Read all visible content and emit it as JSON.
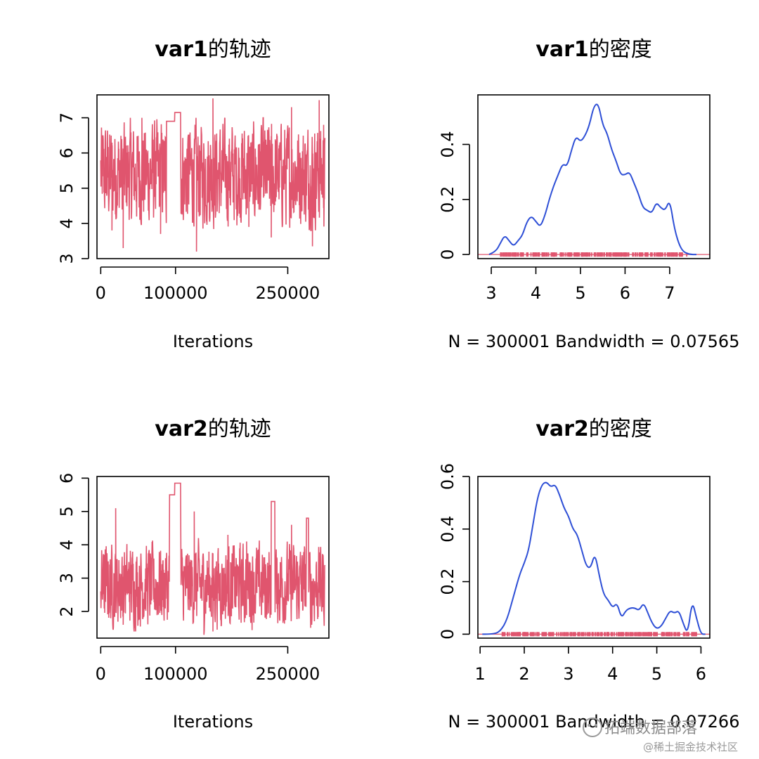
{
  "chart_data": [
    {
      "type": "line",
      "title_bold": "var1",
      "title_rest": "的轨迹",
      "xlabel": "Iterations",
      "xticks": [
        0,
        100000,
        250000
      ],
      "yticks": [
        3,
        4,
        5,
        6,
        7
      ],
      "xlim": [
        -5000,
        305000
      ],
      "ylim": [
        3.0,
        7.65
      ],
      "series": [
        {
          "color": "#E0556E",
          "band": [
            4.2,
            6.6
          ],
          "mean": 5.4,
          "plateaus": [
            {
              "x0": 88000,
              "x1": 99000,
              "y": 6.9
            },
            {
              "x0": 99000,
              "x1": 107000,
              "y": 7.15
            }
          ],
          "gaps": [
            [
              92000,
              107000
            ]
          ],
          "spikes": [
            [
              2000,
              6.5
            ],
            [
              15000,
              3.8
            ],
            [
              30000,
              3.3
            ],
            [
              55000,
              7.0
            ],
            [
              80000,
              3.7
            ],
            [
              128000,
              3.2
            ],
            [
              150000,
              7.55
            ],
            [
              198000,
              3.9
            ],
            [
              228000,
              3.6
            ],
            [
              255000,
              7.3
            ],
            [
              283000,
              3.35
            ],
            [
              292000,
              7.5
            ],
            [
              298000,
              6.8
            ]
          ]
        }
      ],
      "points": 300001
    },
    {
      "type": "area",
      "title_bold": "var1",
      "title_rest": "的密度",
      "xlabel": "N = 300001   Bandwidth = 0.07565",
      "xticks": [
        3,
        4,
        5,
        6,
        7
      ],
      "yticks": [
        0.0,
        0.2,
        0.4
      ],
      "xlim": [
        2.7,
        7.9
      ],
      "ylim": [
        -0.015,
        0.58
      ],
      "series": [
        {
          "color": "#2E4FD6",
          "x": [
            2.95,
            3.1,
            3.2,
            3.3,
            3.4,
            3.5,
            3.6,
            3.7,
            3.8,
            3.9,
            4.0,
            4.1,
            4.2,
            4.3,
            4.4,
            4.5,
            4.6,
            4.7,
            4.8,
            4.9,
            5.0,
            5.1,
            5.2,
            5.3,
            5.4,
            5.5,
            5.6,
            5.7,
            5.8,
            5.9,
            6.0,
            6.1,
            6.2,
            6.3,
            6.4,
            6.5,
            6.6,
            6.7,
            6.8,
            6.9,
            7.0,
            7.1,
            7.2,
            7.3,
            7.45,
            7.6
          ],
          "y": [
            0.0,
            0.01,
            0.04,
            0.07,
            0.05,
            0.03,
            0.05,
            0.07,
            0.12,
            0.14,
            0.12,
            0.1,
            0.14,
            0.2,
            0.25,
            0.29,
            0.33,
            0.32,
            0.38,
            0.43,
            0.41,
            0.43,
            0.47,
            0.54,
            0.55,
            0.47,
            0.44,
            0.38,
            0.34,
            0.29,
            0.29,
            0.3,
            0.26,
            0.22,
            0.17,
            0.16,
            0.15,
            0.19,
            0.17,
            0.16,
            0.2,
            0.1,
            0.04,
            0.01,
            0.0,
            0.0
          ]
        }
      ],
      "rug": {
        "color": "#E0556E",
        "from": 3.2,
        "to": 7.4
      }
    },
    {
      "type": "line",
      "title_bold": "var2",
      "title_rest": "的轨迹",
      "xlabel": "Iterations",
      "xticks": [
        0,
        100000,
        250000
      ],
      "yticks": [
        2,
        3,
        4,
        5,
        6
      ],
      "xlim": [
        -5000,
        305000
      ],
      "ylim": [
        1.2,
        6.05
      ],
      "series": [
        {
          "color": "#E0556E",
          "band": [
            1.8,
            3.8
          ],
          "mean": 2.8,
          "plateaus": [
            {
              "x0": 92000,
              "x1": 99000,
              "y": 5.5
            },
            {
              "x0": 99000,
              "x1": 107000,
              "y": 5.85
            },
            {
              "x0": 228000,
              "x1": 233000,
              "y": 5.3
            },
            {
              "x0": 275000,
              "x1": 278000,
              "y": 4.8
            }
          ],
          "gaps": [
            [
              95000,
              107000
            ]
          ],
          "spikes": [
            [
              5000,
              3.7
            ],
            [
              20000,
              5.1
            ],
            [
              30000,
              1.6
            ],
            [
              45000,
              1.5
            ],
            [
              125000,
              5.0
            ],
            [
              138000,
              1.3
            ],
            [
              150000,
              1.4
            ],
            [
              170000,
              4.3
            ],
            [
              195000,
              4.1
            ],
            [
              255000,
              4.6
            ],
            [
              282000,
              1.6
            ],
            [
              297000,
              3.7
            ]
          ]
        }
      ],
      "points": 300001
    },
    {
      "type": "area",
      "title_bold": "var2",
      "title_rest": "的密度",
      "xlabel": "N = 300001   Bandwidth = 0.07266",
      "xticks": [
        1,
        2,
        3,
        4,
        5,
        6
      ],
      "yticks": [
        0.0,
        0.2,
        0.4,
        0.6
      ],
      "xlim": [
        0.95,
        6.2
      ],
      "ylim": [
        -0.015,
        0.6
      ],
      "series": [
        {
          "color": "#2E4FD6",
          "x": [
            1.05,
            1.3,
            1.45,
            1.6,
            1.75,
            1.9,
            2.0,
            2.1,
            2.2,
            2.3,
            2.4,
            2.5,
            2.6,
            2.7,
            2.8,
            2.9,
            3.0,
            3.1,
            3.2,
            3.3,
            3.4,
            3.5,
            3.6,
            3.7,
            3.8,
            3.9,
            4.0,
            4.1,
            4.2,
            4.3,
            4.4,
            4.5,
            4.6,
            4.7,
            4.8,
            4.9,
            5.0,
            5.1,
            5.2,
            5.3,
            5.4,
            5.5,
            5.6,
            5.7,
            5.8,
            5.9,
            6.0,
            6.1
          ],
          "y": [
            0.0,
            0.0,
            0.01,
            0.05,
            0.14,
            0.23,
            0.27,
            0.32,
            0.42,
            0.52,
            0.57,
            0.58,
            0.56,
            0.57,
            0.53,
            0.48,
            0.45,
            0.4,
            0.38,
            0.32,
            0.26,
            0.25,
            0.31,
            0.22,
            0.15,
            0.13,
            0.1,
            0.12,
            0.06,
            0.09,
            0.1,
            0.1,
            0.09,
            0.12,
            0.08,
            0.04,
            0.02,
            0.03,
            0.06,
            0.09,
            0.08,
            0.09,
            0.04,
            0.0,
            0.13,
            0.06,
            0.0,
            0.0
          ]
        }
      ],
      "rug": {
        "color": "#E0556E",
        "from": 1.5,
        "to": 5.9
      }
    }
  ],
  "watermark": {
    "line1": "拓端数据部落",
    "line2": "@稀土掘金技术社区"
  }
}
